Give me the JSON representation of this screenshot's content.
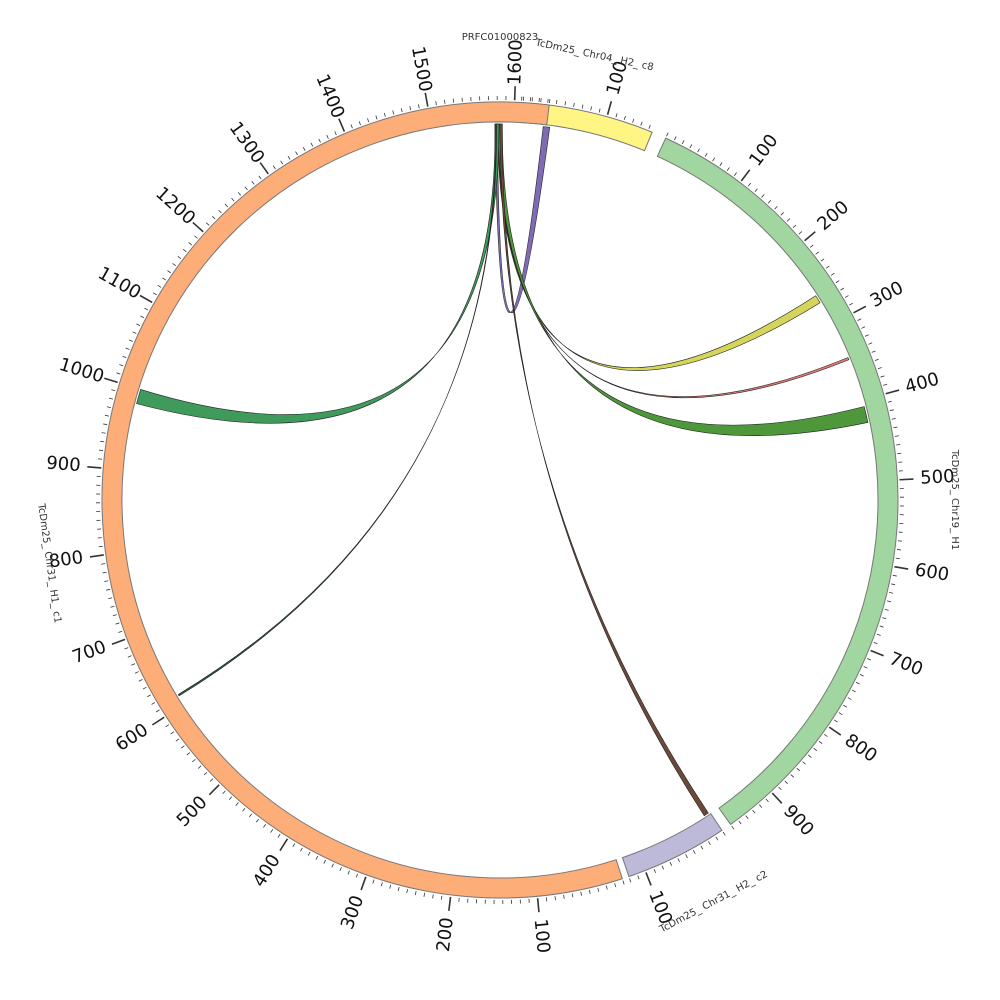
{
  "chart_data": {
    "type": "chord",
    "segments": [
      {
        "id": "prfc",
        "name": "PRFC01000823",
        "length": 14,
        "color": "#99C2DB",
        "tick_step": null
      },
      {
        "id": "chr04",
        "name": "TcDm25_ Chr04_ H2_ c8",
        "length": 155,
        "color": "#FFF585",
        "tick_step": 100
      },
      {
        "id": "chr19",
        "name": "TcDm25_ Chr19_ H1",
        "length": 960,
        "color": "#A1D6A1",
        "tick_step": 100
      },
      {
        "id": "chr31h2",
        "name": "TcDm25_ Chr31_ H2_ c2",
        "length": 120,
        "color": "#BDB9D9",
        "tick_step": 100
      },
      {
        "id": "chr31h1",
        "name": "TcDm25_ Chr31_ H1_ c1",
        "length": 1640,
        "color": "#FDAE78",
        "tick_step": 100
      }
    ],
    "links": [
      {
        "source": "prfc",
        "source_range": [
          1,
          4
        ],
        "target": "chr04",
        "target_range": [
          28,
          36
        ],
        "color": "#7E6BB3"
      },
      {
        "source": "prfc",
        "source_range": [
          4,
          7
        ],
        "target": "chr19",
        "target_range": [
          260,
          270
        ],
        "color": "#D4D55A"
      },
      {
        "source": "prfc",
        "source_range": [
          4,
          5
        ],
        "target": "chr19",
        "target_range": [
          345,
          348
        ],
        "color": "#E07A7A"
      },
      {
        "source": "prfc",
        "source_range": [
          5,
          10
        ],
        "target": "chr19",
        "target_range": [
          408,
          428
        ],
        "color": "#4E973A"
      },
      {
        "source": "prfc",
        "source_range": [
          7,
          10
        ],
        "target": "chr31h2",
        "target_range": [
          2,
          8
        ],
        "color": "#6B4A3A"
      },
      {
        "source": "prfc",
        "source_range": [
          1,
          6
        ],
        "target": "chr31h1",
        "target_range": [
          982,
          1000
        ],
        "color": "#3F9A5C"
      },
      {
        "source": "prfc",
        "source_range": [
          2,
          3
        ],
        "target": "chr31h1",
        "target_range": [
          612,
          614
        ],
        "color": "#2F5E4A"
      }
    ]
  }
}
